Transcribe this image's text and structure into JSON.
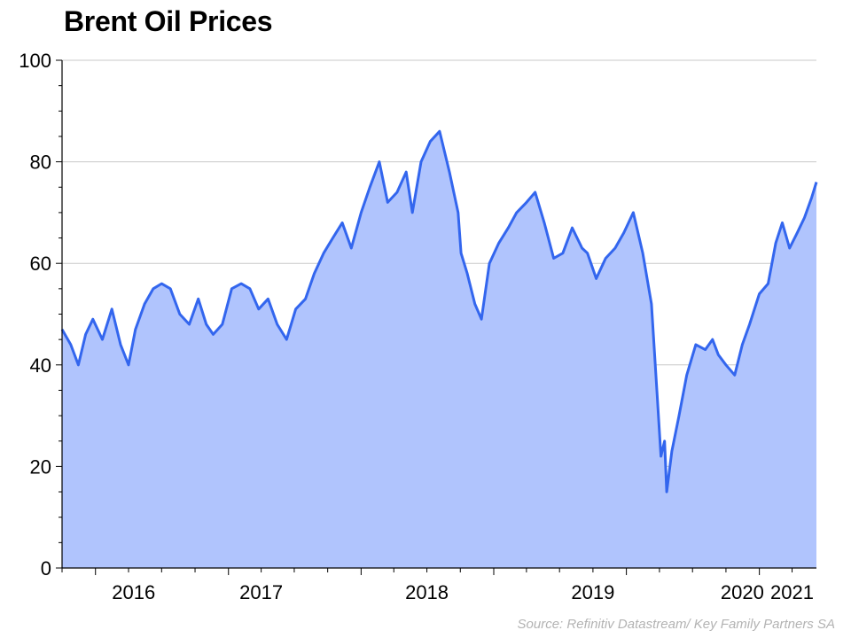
{
  "chart_data": {
    "type": "area",
    "title": "Brent Oil Prices",
    "xlabel": "",
    "ylabel": "",
    "source": "Source: Refinitiv Datastream/ Key Family Partners SA",
    "ylim": [
      0,
      100
    ],
    "xlim": [
      "2015-10-01",
      "2021-06-07"
    ],
    "y_ticks": [
      "0",
      "20",
      "40",
      "60",
      "80",
      "100"
    ],
    "x_tick_labels": [
      {
        "label": "2016",
        "date": "2016-04-15"
      },
      {
        "label": "2017",
        "date": "2017-04-01"
      },
      {
        "label": "2018",
        "date": "2018-07-01"
      },
      {
        "label": "2019",
        "date": "2019-10-01"
      },
      {
        "label": "2020",
        "date": "2020-11-15"
      },
      {
        "label": "2021",
        "date": "2021-04-01"
      }
    ],
    "grid": "horizontal",
    "colors": {
      "line": "#3366ee",
      "fill": "#b0c4fd",
      "grid": "#c8c8c8"
    },
    "series": [
      {
        "x": [
          "2015-10-01",
          "2015-10-25",
          "2015-11-15",
          "2015-12-05",
          "2015-12-25",
          "2016-01-20",
          "2016-02-15",
          "2016-03-10",
          "2016-04-01",
          "2016-04-20",
          "2016-05-15",
          "2016-06-08",
          "2016-07-01",
          "2016-07-25",
          "2016-08-20",
          "2016-09-15",
          "2016-10-10",
          "2016-11-01",
          "2016-11-20",
          "2016-12-15",
          "2017-01-10",
          "2017-02-05",
          "2017-03-01",
          "2017-03-25",
          "2017-04-20",
          "2017-05-15",
          "2017-06-10",
          "2017-07-05",
          "2017-08-01",
          "2017-08-25",
          "2017-09-20",
          "2017-10-15",
          "2017-11-10",
          "2017-12-05",
          "2018-01-01",
          "2018-01-25",
          "2018-02-20",
          "2018-03-15",
          "2018-04-10",
          "2018-05-05",
          "2018-05-22",
          "2018-06-15",
          "2018-07-10",
          "2018-08-05",
          "2018-09-01",
          "2018-09-25",
          "2018-10-03",
          "2018-10-20",
          "2018-11-10",
          "2018-11-28",
          "2018-12-20",
          "2019-01-15",
          "2019-02-10",
          "2019-03-05",
          "2019-04-01",
          "2019-04-25",
          "2019-05-20",
          "2019-06-15",
          "2019-07-10",
          "2019-08-05",
          "2019-09-01",
          "2019-09-16",
          "2019-10-10",
          "2019-11-05",
          "2019-12-01",
          "2019-12-25",
          "2020-01-20",
          "2020-02-15",
          "2020-03-10",
          "2020-03-25",
          "2020-04-05",
          "2020-04-15",
          "2020-04-21",
          "2020-05-05",
          "2020-05-25",
          "2020-06-15",
          "2020-07-10",
          "2020-08-05",
          "2020-08-25",
          "2020-09-10",
          "2020-10-01",
          "2020-10-25",
          "2020-11-15",
          "2020-12-05",
          "2021-01-01",
          "2021-01-25",
          "2021-02-15",
          "2021-03-05",
          "2021-03-25",
          "2021-04-15",
          "2021-05-05",
          "2021-05-25",
          "2021-06-07"
        ],
        "y": [
          47,
          44,
          40,
          46,
          49,
          45,
          51,
          44,
          40,
          47,
          52,
          55,
          56,
          55,
          50,
          48,
          53,
          48,
          46,
          48,
          55,
          56,
          55,
          51,
          53,
          48,
          45,
          51,
          53,
          58,
          62,
          65,
          68,
          63,
          70,
          75,
          80,
          72,
          74,
          78,
          70,
          80,
          84,
          86,
          78,
          70,
          62,
          58,
          52,
          49,
          60,
          64,
          67,
          70,
          72,
          74,
          68,
          61,
          62,
          67,
          63,
          62,
          57,
          61,
          63,
          66,
          70,
          62,
          52,
          35,
          22,
          25,
          15,
          23,
          30,
          38,
          44,
          43,
          45,
          42,
          40,
          38,
          44,
          48,
          54,
          56,
          64,
          68,
          63,
          66,
          69,
          73,
          76
        ]
      }
    ]
  }
}
